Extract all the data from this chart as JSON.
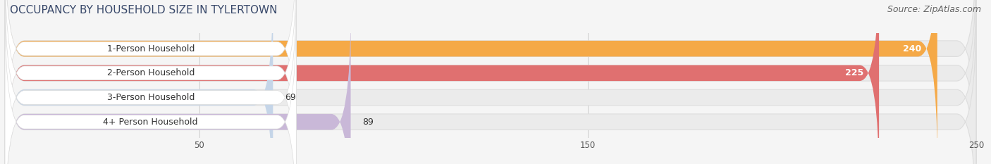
{
  "title": "OCCUPANCY BY HOUSEHOLD SIZE IN TYLERTOWN",
  "source": "Source: ZipAtlas.com",
  "categories": [
    "1-Person Household",
    "2-Person Household",
    "3-Person Household",
    "4+ Person Household"
  ],
  "values": [
    240,
    225,
    69,
    89
  ],
  "bar_colors": [
    "#F5A947",
    "#E07070",
    "#C5D5E8",
    "#C9B8D8"
  ],
  "bar_bg_color": "#EBEBEB",
  "xlim_data": [
    0,
    250
  ],
  "xticks": [
    50,
    150,
    250
  ],
  "title_color": "#3A4A6B",
  "title_fontsize": 11,
  "source_fontsize": 9,
  "label_fontsize": 9,
  "value_fontsize": 9,
  "bar_height": 0.65,
  "background_color": "#F5F5F5",
  "label_bg_color": "#FFFFFF",
  "rounding_size": 5
}
